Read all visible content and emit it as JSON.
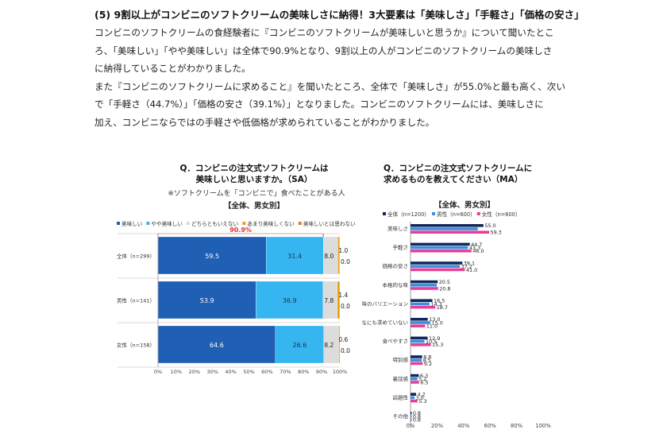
{
  "article": {
    "heading": "(5) 9割以上がコンビニのソフトクリームの美味しさに納得！3大要素は「美味しさ」「手軽さ」「価格の安さ」",
    "paragraph_lines": [
      "コンビニのソフトクリームの食経験者に『コンビニのソフトクリームが美味しいと思うか』について聞いたとこ",
      "ろ、「美味しい」「やや美味しい」は全体で90.9%となり、9割以上の人がコンビニのソフトクリームの美味しさ",
      "に納得していることがわかりました。",
      "また『コンビニのソフトクリームに求めること』を聞いたところ、全体で「美味しさ」が55.0%と最も高く、次い",
      "で「手軽さ（44.7%）」「価格の安さ（39.1%）」となりました。コンビニのソフトクリームには、美味しさに",
      "加え、コンビニならではの手軽さや低価格が求められていることがわかりました。"
    ]
  },
  "left_chart": {
    "title_line1": "Q．コンビニの注文式ソフトクリームは",
    "title_line2": "美味しいと思いますか。（SA）",
    "note": "※ソフトクリームを「コンビニで」食べたことがある人",
    "subtitle": "【全体、男女別】",
    "highlight_label": "90.9%"
  },
  "right_chart": {
    "title_line1": "Q．コンビニの注文式ソフトクリームに",
    "title_line2": "求めるものを教えてください（MA）",
    "subtitle": "【全体、男女別】"
  },
  "chart_data": [
    {
      "type": "bar",
      "orientation": "horizontal-stacked-100",
      "categories": [
        "全体（n=299）",
        "男性（n=141）",
        "女性（n=158）"
      ],
      "series": [
        {
          "name": "美味しい",
          "color": "#1f5fb4",
          "values": [
            59.5,
            53.9,
            64.6
          ]
        },
        {
          "name": "やや美味しい",
          "color": "#36b6f0",
          "values": [
            31.4,
            36.9,
            26.6
          ]
        },
        {
          "name": "どちらともいえない",
          "color": "#dcdcdc",
          "values": [
            8.0,
            7.8,
            8.2
          ]
        },
        {
          "name": "あまり美味しくない",
          "color": "#e8a317",
          "values": [
            1.0,
            1.4,
            0.6
          ]
        },
        {
          "name": "美味しいとは思わない",
          "color": "#f07a2a",
          "values": [
            0.0,
            0.0,
            0.0
          ]
        }
      ],
      "value_labels": [
        [
          "59.5",
          "31.4",
          "8.0",
          "1.0",
          "0.0"
        ],
        [
          "53.9",
          "36.9",
          "7.8",
          "1.4",
          "0.0"
        ],
        [
          "64.6",
          "26.6",
          "8.2",
          "0.6",
          "0.0"
        ]
      ],
      "x_ticks": [
        "0%",
        "10%",
        "20%",
        "30%",
        "40%",
        "50%",
        "60%",
        "70%",
        "80%",
        "90%",
        "100%"
      ],
      "xlim": [
        0,
        100
      ],
      "legend_position": "top"
    },
    {
      "type": "bar",
      "orientation": "horizontal-grouped",
      "categories": [
        "美味しさ",
        "手軽さ",
        "価格の安さ",
        "本格的な味",
        "味のバリエーション",
        "なにも求めていない",
        "食べやすさ",
        "特別感",
        "裏話感",
        "話題性",
        "その他"
      ],
      "series": [
        {
          "name": "全体（n=1200）",
          "color": "#12275e",
          "values": [
            55.0,
            44.7,
            39.1,
            20.5,
            16.5,
            13.0,
            12.9,
            8.8,
            6.3,
            4.2,
            0.8
          ],
          "labels": [
            "55.0",
            "44.7",
            "39.1",
            "20.5",
            "16.5",
            "13.0",
            "12.9",
            "8.8",
            "6.3",
            "4.2",
            "0.8"
          ]
        },
        {
          "name": "男性（n=600）",
          "color": "#3f8fd8",
          "values": [
            50.7,
            43.3,
            37.2,
            19.8,
            14.3,
            15.0,
            10.5,
            8.5,
            5.2,
            3.0,
            0.8
          ],
          "labels": [
            "",
            "43.3",
            "37.2",
            "",
            "14.3",
            "15.0",
            "10.5",
            "8.5",
            "5.2",
            "3.0",
            "0.8"
          ]
        },
        {
          "name": "女性（n=600）",
          "color": "#e63e9a",
          "values": [
            59.3,
            46.0,
            41.0,
            20.8,
            18.7,
            11.0,
            15.3,
            9.2,
            6.5,
            5.3,
            0.8
          ],
          "labels": [
            "59.3",
            "46.0",
            "41.0",
            "20.8",
            "18.7",
            "11.0",
            "15.3",
            "9.2",
            "6.5",
            "5.3",
            "0.8"
          ]
        }
      ],
      "x_ticks": [
        "0%",
        "20%",
        "40%",
        "60%",
        "80%",
        "100%"
      ],
      "xlim": [
        0,
        100
      ],
      "legend_position": "top"
    }
  ]
}
